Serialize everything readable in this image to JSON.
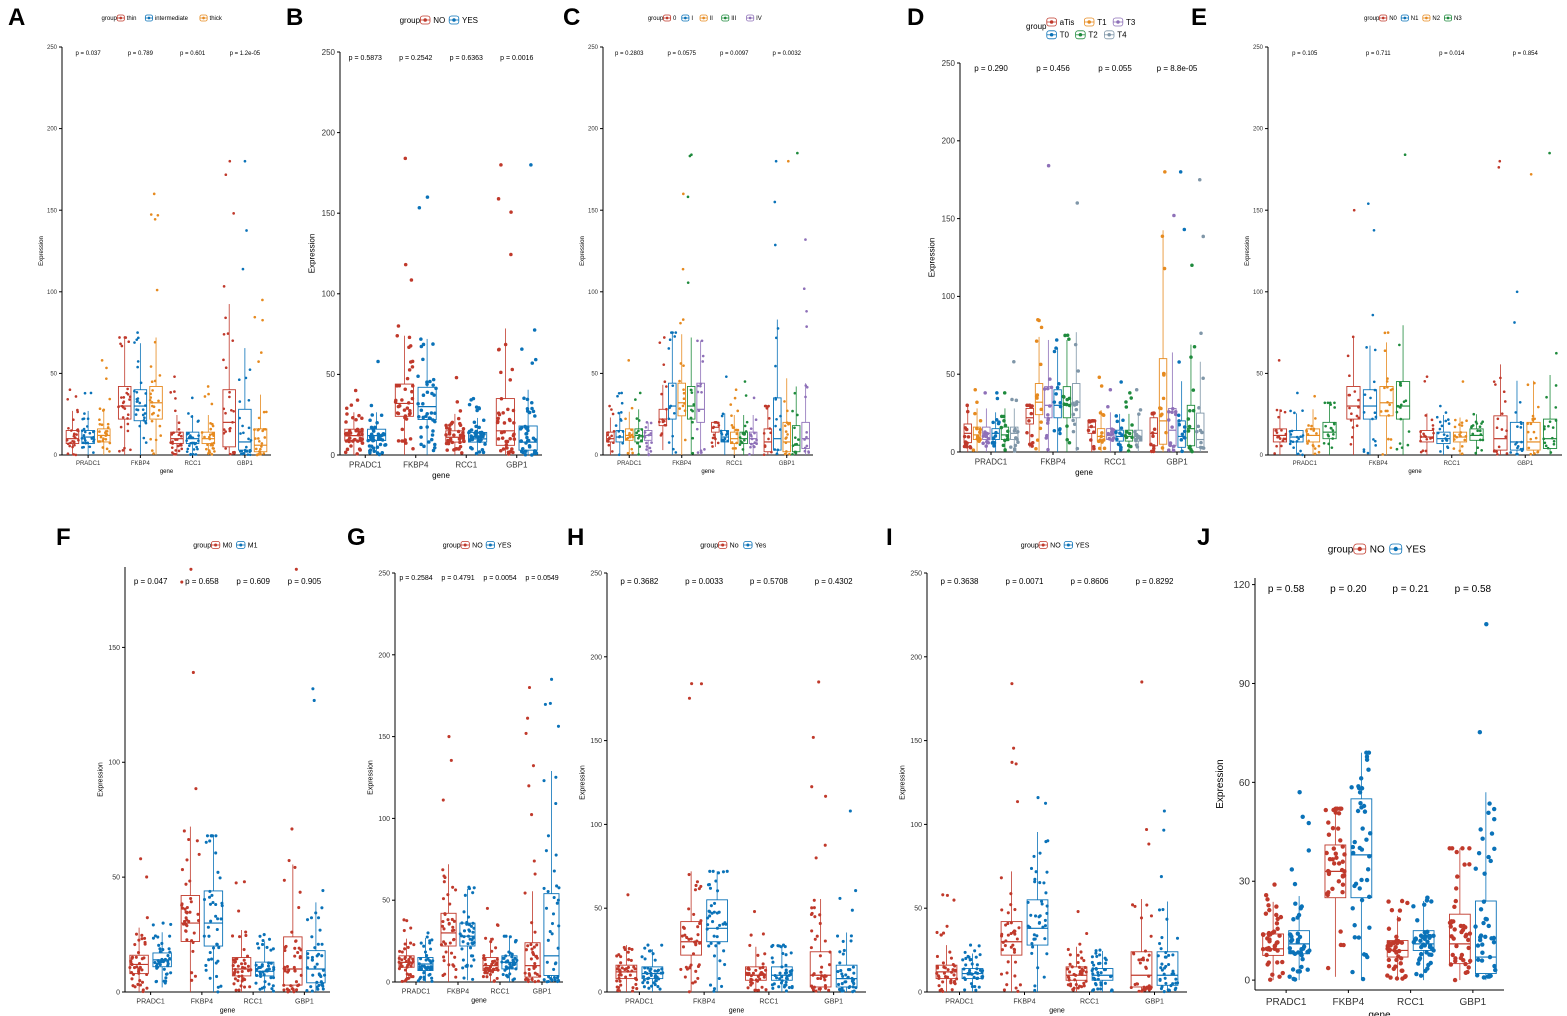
{
  "colors": {
    "red": "#c0392b",
    "blue": "#0a72b8",
    "orange": "#e68a1f",
    "green": "#1e8a3c",
    "purple": "#8e70b8",
    "grey": "#7f96a8"
  },
  "chart_data": [
    {
      "panel": "A",
      "type": "box",
      "title": "",
      "xlabel": "gene",
      "ylabel": "Expression",
      "legend_title": "group",
      "groups": [
        {
          "name": "thin",
          "color": "red"
        },
        {
          "name": "intermediate",
          "color": "blue"
        },
        {
          "name": "thick",
          "color": "orange"
        }
      ],
      "categories": [
        "PRADC1",
        "FKBP4",
        "RCC1",
        "GBP1"
      ],
      "pvalues": [
        "p = 0.037",
        "p = 0.789",
        "p = 0.601",
        "p = 1.2e-05"
      ],
      "ylim": [
        0,
        250
      ],
      "yticks": [
        0,
        50,
        100,
        150,
        200,
        250
      ],
      "medians": [
        [
          10,
          11,
          12
        ],
        [
          30,
          30,
          32
        ],
        [
          10,
          10,
          10
        ],
        [
          20,
          8,
          6
        ]
      ],
      "q1": [
        [
          7,
          7,
          8
        ],
        [
          22,
          21,
          22
        ],
        [
          7,
          7,
          7
        ],
        [
          5,
          3,
          2
        ]
      ],
      "q3": [
        [
          15,
          15,
          16
        ],
        [
          42,
          40,
          42
        ],
        [
          14,
          14,
          14
        ],
        [
          40,
          28,
          16
        ]
      ],
      "maxes": [
        [
          40,
          38,
          58
        ],
        [
          72,
          75,
          160
        ],
        [
          48,
          35,
          42
        ],
        [
          180,
          180,
          95
        ]
      ]
    },
    {
      "panel": "B",
      "type": "box",
      "title": "",
      "xlabel": "gene",
      "ylabel": "Expression",
      "legend_title": "group",
      "groups": [
        {
          "name": "NO",
          "color": "red"
        },
        {
          "name": "YES",
          "color": "blue"
        }
      ],
      "categories": [
        "PRADC1",
        "FKBP4",
        "RCC1",
        "GBP1"
      ],
      "pvalues": [
        "p = 0.5873",
        "p = 0.2542",
        "p = 0.6363",
        "p = 0.0016"
      ],
      "ylim": [
        0,
        250
      ],
      "yticks": [
        0,
        50,
        100,
        150,
        200,
        250
      ],
      "medians": [
        [
          12,
          12
        ],
        [
          32,
          30
        ],
        [
          11,
          10
        ],
        [
          15,
          8
        ]
      ],
      "q1": [
        [
          9,
          9
        ],
        [
          24,
          22
        ],
        [
          8,
          8
        ],
        [
          6,
          3
        ]
      ],
      "q3": [
        [
          16,
          16
        ],
        [
          44,
          42
        ],
        [
          15,
          14
        ],
        [
          35,
          18
        ]
      ],
      "maxes": [
        [
          40,
          58
        ],
        [
          184,
          160
        ],
        [
          48,
          35
        ],
        [
          180,
          180
        ]
      ]
    },
    {
      "panel": "C",
      "type": "box",
      "title": "",
      "xlabel": "gene",
      "ylabel": "Expression",
      "legend_title": "group",
      "groups": [
        {
          "name": "0",
          "color": "red"
        },
        {
          "name": "I",
          "color": "blue"
        },
        {
          "name": "II",
          "color": "orange"
        },
        {
          "name": "III",
          "color": "green"
        },
        {
          "name": "IV",
          "color": "purple"
        }
      ],
      "categories": [
        "PRADC1",
        "FKBP4",
        "RCC1",
        "GBP1"
      ],
      "pvalues": [
        "p = 0.2803",
        "p = 0.0575",
        "p = 0.0097",
        "p = 0.0032"
      ],
      "ylim": [
        0,
        250
      ],
      "yticks": [
        0,
        50,
        100,
        150,
        200,
        250
      ],
      "medians": [
        [
          10,
          11,
          12,
          12,
          12
        ],
        [
          22,
          30,
          32,
          30,
          28
        ],
        [
          17,
          11,
          10,
          10,
          10
        ],
        [
          8,
          10,
          8,
          6,
          10
        ]
      ],
      "q1": [
        [
          8,
          8,
          9,
          8,
          9
        ],
        [
          18,
          22,
          24,
          22,
          20
        ],
        [
          14,
          8,
          7,
          7,
          7
        ],
        [
          2,
          3,
          2,
          2,
          4
        ]
      ],
      "q3": [
        [
          14,
          15,
          16,
          16,
          15
        ],
        [
          28,
          44,
          44,
          42,
          44
        ],
        [
          20,
          15,
          14,
          14,
          14
        ],
        [
          16,
          35,
          20,
          18,
          20
        ]
      ],
      "maxes": [
        [
          30,
          38,
          58,
          38,
          20
        ],
        [
          72,
          75,
          160,
          184,
          70
        ],
        [
          20,
          48,
          40,
          45,
          35
        ],
        [
          30,
          180,
          180,
          185,
          132
        ]
      ]
    },
    {
      "panel": "D",
      "type": "box",
      "title": "",
      "xlabel": "gene",
      "ylabel": "Expression",
      "legend_title": "group",
      "groups": [
        {
          "name": "aTis",
          "color": "red"
        },
        {
          "name": "T1",
          "color": "orange"
        },
        {
          "name": "T3",
          "color": "purple"
        },
        {
          "name": "T0",
          "color": "blue"
        },
        {
          "name": "T2",
          "color": "green"
        },
        {
          "name": "T4",
          "color": "grey"
        }
      ],
      "categories": [
        "PRADC1",
        "FKBP4",
        "RCC1",
        "GBP1"
      ],
      "pvalues": [
        "p = 0.290",
        "p = 0.456",
        "p = 0.055",
        "p = 8.8e-05"
      ],
      "ylim": [
        0,
        250
      ],
      "yticks": [
        0,
        50,
        100,
        150,
        200,
        250
      ],
      "medians": [
        [
          12,
          11,
          12,
          12,
          11,
          12
        ],
        [
          22,
          32,
          30,
          30,
          30,
          32
        ],
        [
          16,
          10,
          11,
          10,
          10,
          10
        ],
        [
          12,
          20,
          14,
          10,
          15,
          8
        ]
      ],
      "q1": [
        [
          6,
          8,
          8,
          8,
          8,
          8
        ],
        [
          18,
          24,
          22,
          22,
          22,
          22
        ],
        [
          12,
          7,
          8,
          7,
          7,
          7
        ],
        [
          4,
          5,
          4,
          3,
          4,
          3
        ]
      ],
      "q3": [
        [
          18,
          16,
          16,
          15,
          16,
          16
        ],
        [
          28,
          44,
          42,
          40,
          42,
          44
        ],
        [
          20,
          15,
          15,
          14,
          14,
          14
        ],
        [
          22,
          60,
          28,
          20,
          30,
          25
        ]
      ],
      "maxes": [
        [
          30,
          40,
          38,
          38,
          38,
          58
        ],
        [
          30,
          85,
          184,
          72,
          75,
          160
        ],
        [
          20,
          48,
          40,
          45,
          38,
          40
        ],
        [
          25,
          180,
          152,
          180,
          120,
          175
        ]
      ]
    },
    {
      "panel": "E",
      "type": "box",
      "title": "",
      "xlabel": "gene",
      "ylabel": "Expression",
      "legend_title": "group",
      "groups": [
        {
          "name": "N0",
          "color": "red"
        },
        {
          "name": "N1",
          "color": "blue"
        },
        {
          "name": "N2",
          "color": "orange"
        },
        {
          "name": "N3",
          "color": "green"
        }
      ],
      "categories": [
        "PRADC1",
        "FKBP4",
        "RCC1",
        "GBP1"
      ],
      "pvalues": [
        "p = 0.105",
        "p = 0.711",
        "p = 0.014",
        "p = 0.854"
      ],
      "ylim": [
        0,
        250
      ],
      "yticks": [
        0,
        50,
        100,
        150,
        200,
        250
      ],
      "medians": [
        [
          12,
          11,
          12,
          14
        ],
        [
          30,
          30,
          32,
          30
        ],
        [
          11,
          10,
          11,
          12
        ],
        [
          10,
          8,
          8,
          10
        ]
      ],
      "q1": [
        [
          8,
          8,
          8,
          10
        ],
        [
          22,
          22,
          24,
          22
        ],
        [
          8,
          7,
          8,
          9
        ],
        [
          3,
          3,
          3,
          4
        ]
      ],
      "q3": [
        [
          16,
          15,
          16,
          20
        ],
        [
          42,
          40,
          42,
          45
        ],
        [
          15,
          14,
          14,
          16
        ],
        [
          24,
          20,
          20,
          22
        ]
      ],
      "maxes": [
        [
          58,
          38,
          36,
          32
        ],
        [
          150,
          154,
          75,
          184
        ],
        [
          48,
          30,
          45,
          25
        ],
        [
          180,
          100,
          172,
          185
        ]
      ]
    },
    {
      "panel": "F",
      "type": "box",
      "title": "",
      "xlabel": "gene",
      "ylabel": "Expression",
      "legend_title": "group",
      "groups": [
        {
          "name": "M0",
          "color": "red"
        },
        {
          "name": "M1",
          "color": "blue"
        }
      ],
      "categories": [
        "PRADC1",
        "FKBP4",
        "RCC1",
        "GBP1"
      ],
      "pvalues": [
        "p = 0.047",
        "p = 0.658",
        "p = 0.609",
        "p = 0.905"
      ],
      "ylim": [
        0,
        185
      ],
      "yticks": [
        0,
        50,
        100,
        150
      ],
      "medians": [
        [
          12,
          14
        ],
        [
          30,
          30
        ],
        [
          10,
          9
        ],
        [
          10,
          10
        ]
      ],
      "q1": [
        [
          8,
          11
        ],
        [
          22,
          20
        ],
        [
          7,
          7
        ],
        [
          3,
          4
        ]
      ],
      "q3": [
        [
          16,
          17
        ],
        [
          42,
          44
        ],
        [
          15,
          13
        ],
        [
          24,
          18
        ]
      ],
      "maxes": [
        [
          58,
          30
        ],
        [
          184,
          68
        ],
        [
          48,
          25
        ],
        [
          184,
          132
        ]
      ]
    },
    {
      "panel": "G",
      "type": "box",
      "title": "",
      "xlabel": "gene",
      "ylabel": "Expression",
      "legend_title": "group",
      "groups": [
        {
          "name": "NO",
          "color": "red"
        },
        {
          "name": "YES",
          "color": "blue"
        }
      ],
      "categories": [
        "PRADC1",
        "FKBP4",
        "RCC1",
        "GBP1"
      ],
      "pvalues": [
        "p = 0.2584",
        "p = 0.4791",
        "p = 0.0054",
        "p = 0.0549"
      ],
      "ylim": [
        0,
        250
      ],
      "yticks": [
        0,
        50,
        100,
        150,
        200,
        250
      ],
      "medians": [
        [
          12,
          11
        ],
        [
          30,
          28
        ],
        [
          10,
          12
        ],
        [
          10,
          16
        ]
      ],
      "q1": [
        [
          9,
          7
        ],
        [
          22,
          22
        ],
        [
          7,
          8
        ],
        [
          3,
          4
        ]
      ],
      "q3": [
        [
          16,
          15
        ],
        [
          42,
          36
        ],
        [
          15,
          16
        ],
        [
          24,
          54
        ]
      ],
      "maxes": [
        [
          38,
          30
        ],
        [
          150,
          58
        ],
        [
          45,
          28
        ],
        [
          180,
          185
        ]
      ]
    },
    {
      "panel": "H",
      "type": "box",
      "title": "",
      "xlabel": "gene",
      "ylabel": "Expression",
      "legend_title": "group",
      "groups": [
        {
          "name": "No",
          "color": "red"
        },
        {
          "name": "Yes",
          "color": "blue"
        }
      ],
      "categories": [
        "PRADC1",
        "FKBP4",
        "RCC1",
        "GBP1"
      ],
      "pvalues": [
        "p = 0.3682",
        "p = 0.0033",
        "p = 0.5708",
        "p = 0.4302"
      ],
      "ylim": [
        0,
        250
      ],
      "yticks": [
        0,
        50,
        100,
        150,
        200,
        250
      ],
      "medians": [
        [
          12,
          11
        ],
        [
          30,
          38
        ],
        [
          10,
          10
        ],
        [
          10,
          8
        ]
      ],
      "q1": [
        [
          8,
          8
        ],
        [
          22,
          30
        ],
        [
          7,
          7
        ],
        [
          3,
          3
        ]
      ],
      "q3": [
        [
          16,
          15
        ],
        [
          42,
          55
        ],
        [
          15,
          15
        ],
        [
          24,
          16
        ]
      ],
      "maxes": [
        [
          58,
          28
        ],
        [
          184,
          72
        ],
        [
          48,
          28
        ],
        [
          185,
          108
        ]
      ]
    },
    {
      "panel": "I",
      "type": "box",
      "title": "",
      "xlabel": "gene",
      "ylabel": "Expression",
      "legend_title": "group",
      "groups": [
        {
          "name": "NO",
          "color": "red"
        },
        {
          "name": "YES",
          "color": "blue"
        }
      ],
      "categories": [
        "PRADC1",
        "FKBP4",
        "RCC1",
        "GBP1"
      ],
      "pvalues": [
        "p = 0.3638",
        "p = 0.0071",
        "p = 0.8606",
        "p = 0.8292"
      ],
      "ylim": [
        0,
        250
      ],
      "yticks": [
        0,
        50,
        100,
        150,
        200,
        250
      ],
      "medians": [
        [
          12,
          11
        ],
        [
          30,
          38
        ],
        [
          10,
          10
        ],
        [
          10,
          10
        ]
      ],
      "q1": [
        [
          8,
          8
        ],
        [
          22,
          28
        ],
        [
          7,
          7
        ],
        [
          3,
          4
        ]
      ],
      "q3": [
        [
          16,
          14
        ],
        [
          42,
          55
        ],
        [
          15,
          14
        ],
        [
          24,
          24
        ]
      ],
      "maxes": [
        [
          58,
          28
        ],
        [
          184,
          116
        ],
        [
          48,
          25
        ],
        [
          185,
          108
        ]
      ]
    },
    {
      "panel": "J",
      "type": "box",
      "title": "",
      "xlabel": "gene",
      "ylabel": "Expression",
      "legend_title": "group",
      "groups": [
        {
          "name": "NO",
          "color": "red"
        },
        {
          "name": "YES",
          "color": "blue"
        }
      ],
      "categories": [
        "PRADC1",
        "FKBP4",
        "RCC1",
        "GBP1"
      ],
      "pvalues": [
        "p = 0.58",
        "p = 0.20",
        "p = 0.21",
        "p = 0.58"
      ],
      "ylim": [
        -3,
        122
      ],
      "yticks": [
        0,
        30,
        60,
        90,
        120
      ],
      "medians": [
        [
          9.5,
          11
        ],
        [
          33,
          38
        ],
        [
          9,
          11
        ],
        [
          11,
          7
        ]
      ],
      "q1": [
        [
          7.5,
          8
        ],
        [
          25,
          25
        ],
        [
          7,
          9
        ],
        [
          5,
          2
        ]
      ],
      "q3": [
        [
          14,
          15
        ],
        [
          41,
          55
        ],
        [
          12,
          15
        ],
        [
          20,
          24
        ]
      ],
      "maxes": [
        [
          29,
          57
        ],
        [
          52,
          69
        ],
        [
          24,
          25
        ],
        [
          40,
          108
        ]
      ]
    }
  ]
}
